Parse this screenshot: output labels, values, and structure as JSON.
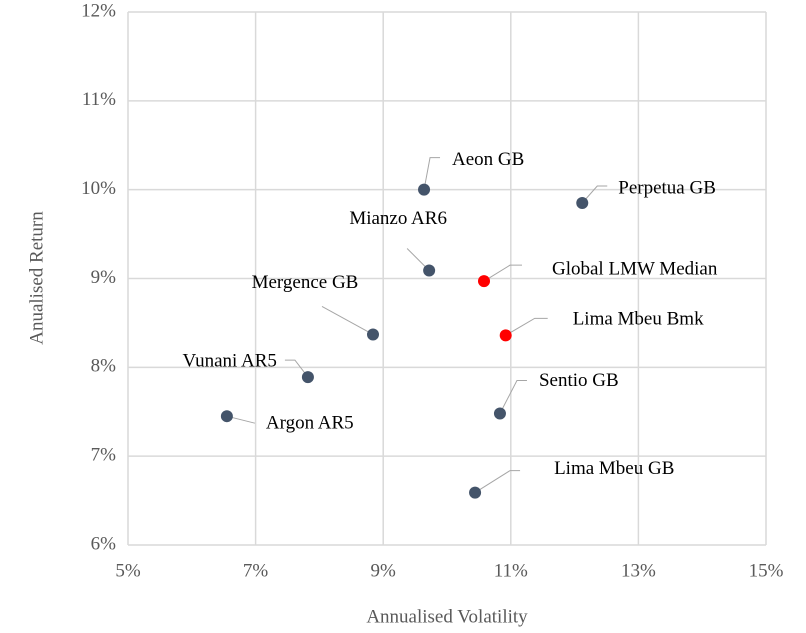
{
  "chart_data": {
    "type": "scatter",
    "x_label": "Annualised Volatility",
    "y_label": "Anualised Return",
    "labels": [
      "Aeon GB",
      "Perpetua GB",
      "Mianzo AR6",
      "Global LMW Median",
      "Mergence GB",
      "Lima Mbeu Bmk",
      "Vunani AR5",
      "Argon AR5",
      "Sentio GB",
      "Lima Mbeu GB"
    ],
    "x": [
      9.64,
      12.12,
      9.72,
      10.58,
      8.84,
      10.92,
      7.82,
      6.55,
      10.83,
      10.44
    ],
    "y": [
      10.0,
      9.85,
      9.09,
      8.97,
      8.37,
      8.36,
      7.89,
      7.45,
      7.48,
      6.59
    ],
    "colors": [
      "#44546a",
      "#44546a",
      "#44546a",
      "#ff0000",
      "#44546a",
      "#ff0000",
      "#44546a",
      "#44546a",
      "#44546a",
      "#44546a"
    ],
    "xlim": [
      5,
      15
    ],
    "xticks": [
      {
        "value": 5,
        "label": "5%"
      },
      {
        "value": 7,
        "label": "7%"
      },
      {
        "value": 9,
        "label": "9%"
      },
      {
        "value": 11,
        "label": "11%"
      },
      {
        "value": 13,
        "label": "13%"
      },
      {
        "value": 15,
        "label": "15%"
      }
    ],
    "ylim": [
      6,
      12
    ],
    "yticks": [
      {
        "value": 6,
        "label": "6%"
      },
      {
        "value": 7,
        "label": "7%"
      },
      {
        "value": 8,
        "label": "8%"
      },
      {
        "value": 9,
        "label": "9%"
      },
      {
        "value": 10,
        "label": "10%"
      },
      {
        "value": 11,
        "label": "11%"
      },
      {
        "value": 12,
        "label": "12%"
      }
    ],
    "grid": true
  }
}
